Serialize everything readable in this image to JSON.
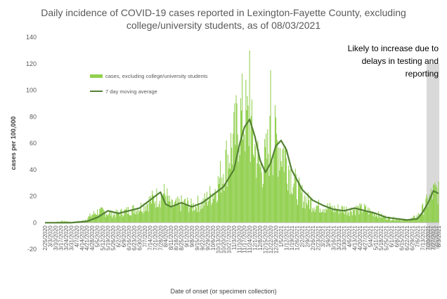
{
  "chart_data": {
    "type": "bar",
    "title": "Daily incidence of COVID-19 cases reported in Lexington-Fayette County, excluding college/university students, as of 08/03/2021",
    "title_lines": [
      "Daily incidence of COVID-19 cases reported in Lexington-Fayette County, excluding",
      "college/university students, as of 08/03/2021"
    ],
    "xlabel": "Date of onset (or specimen collection)",
    "ylabel": "cases per 100,000",
    "ylim": [
      -20,
      140
    ],
    "yticks": [
      -20,
      0,
      20,
      40,
      60,
      80,
      100,
      120,
      140
    ],
    "grid": false,
    "legend_position": "upper-left",
    "annotation": {
      "lines": [
        "Likely to increase due to",
        "delays in testing and",
        "reporting"
      ],
      "shaded_range": [
        "7/20/2021",
        "8/3/2021"
      ]
    },
    "x_tick_labels": [
      "2/25/2020",
      "3/3/2020",
      "3/10/2020",
      "3/17/2020",
      "3/24/2020",
      "3/31/2020",
      "4/7/2020",
      "4/14/2020",
      "4/21/2020",
      "4/28/2020",
      "5/5/2020",
      "5/12/2020",
      "5/19/2020",
      "5/26/2020",
      "6/2/2020",
      "6/9/2020",
      "6/16/2020",
      "6/23/2020",
      "6/30/2020",
      "7/7/2020",
      "7/14/2020",
      "7/21/2020",
      "7/28/2020",
      "8/4/2020",
      "8/11/2020",
      "8/18/2020",
      "8/25/2020",
      "9/1/2020",
      "9/8/2020",
      "9/15/2020",
      "9/22/2020",
      "9/29/2020",
      "10/6/2020",
      "10/13/2020",
      "10/20/2020",
      "10/27/2020",
      "11/3/2020",
      "11/10/2020",
      "11/17/2020",
      "11/24/2020",
      "12/1/2020",
      "12/8/2020",
      "12/15/2020",
      "12/22/2020",
      "12/29/2020",
      "1/5/2021",
      "1/12/2021",
      "1/19/2021",
      "1/26/2021",
      "2/2/2021",
      "2/9/2021",
      "2/16/2021",
      "2/23/2021",
      "3/2/2021",
      "3/9/2021",
      "3/16/2021",
      "3/23/2021",
      "3/30/2021",
      "4/6/2021",
      "4/13/2021",
      "4/20/2021",
      "4/27/2021",
      "5/4/2021",
      "5/11/2021",
      "5/18/2021",
      "5/25/2021",
      "6/1/2021",
      "6/8/2021",
      "6/15/2021",
      "6/22/2021",
      "6/29/2021",
      "7/6/2021",
      "7/13/2021",
      "7/20/2021",
      "7/27/2021",
      "8/3/2021"
    ],
    "series": [
      {
        "name": "cases, excluding college/university students",
        "kind": "bar",
        "color": "#92d050",
        "weekly_values": [
          0,
          0,
          0.5,
          1,
          1,
          0.5,
          1,
          1,
          3,
          6,
          8,
          8,
          7,
          6,
          7,
          8,
          9,
          10,
          11,
          13,
          16,
          18,
          20,
          21,
          12,
          13,
          14,
          14,
          12,
          14,
          14,
          18,
          22,
          28,
          40,
          50,
          60,
          75,
          78,
          70,
          55,
          40,
          45,
          60,
          60,
          55,
          48,
          35,
          25,
          20,
          16,
          14,
          12,
          12,
          11,
          10,
          10,
          10,
          9,
          10,
          10,
          10,
          8,
          7,
          5,
          4,
          3,
          3,
          2,
          2,
          3,
          5,
          10,
          16,
          22,
          24
        ],
        "notable_peaks": [
          {
            "date": "11/24/2020",
            "value": 130
          },
          {
            "date": "12/22/2020",
            "value": 115
          }
        ]
      },
      {
        "name": "7 day moving average",
        "kind": "line",
        "color": "#548235",
        "x": [
          "2/25/2020",
          "3/31/2020",
          "4/21/2020",
          "5/5/2020",
          "5/19/2020",
          "6/2/2020",
          "6/16/2020",
          "6/30/2020",
          "7/14/2020",
          "7/28/2020",
          "8/4/2020",
          "8/11/2020",
          "8/25/2020",
          "9/8/2020",
          "9/22/2020",
          "10/6/2020",
          "10/20/2020",
          "11/3/2020",
          "11/10/2020",
          "11/17/2020",
          "11/24/2020",
          "12/1/2020",
          "12/8/2020",
          "12/15/2020",
          "12/22/2020",
          "12/29/2020",
          "1/5/2021",
          "1/12/2021",
          "1/19/2021",
          "2/2/2021",
          "2/16/2021",
          "3/2/2021",
          "3/16/2021",
          "3/30/2021",
          "4/13/2021",
          "4/27/2021",
          "5/11/2021",
          "5/25/2021",
          "6/8/2021",
          "6/22/2021",
          "7/6/2021",
          "7/13/2021",
          "7/20/2021",
          "7/27/2021",
          "8/3/2021"
        ],
        "values": [
          0,
          0,
          1,
          4,
          9,
          7,
          9,
          11,
          17,
          23,
          14,
          12,
          15,
          12,
          15,
          21,
          27,
          40,
          58,
          72,
          78,
          65,
          47,
          38,
          45,
          58,
          62,
          55,
          40,
          25,
          17,
          13,
          10,
          9,
          11,
          9,
          7,
          4,
          3,
          2,
          3,
          8,
          15,
          24,
          22
        ]
      }
    ]
  }
}
